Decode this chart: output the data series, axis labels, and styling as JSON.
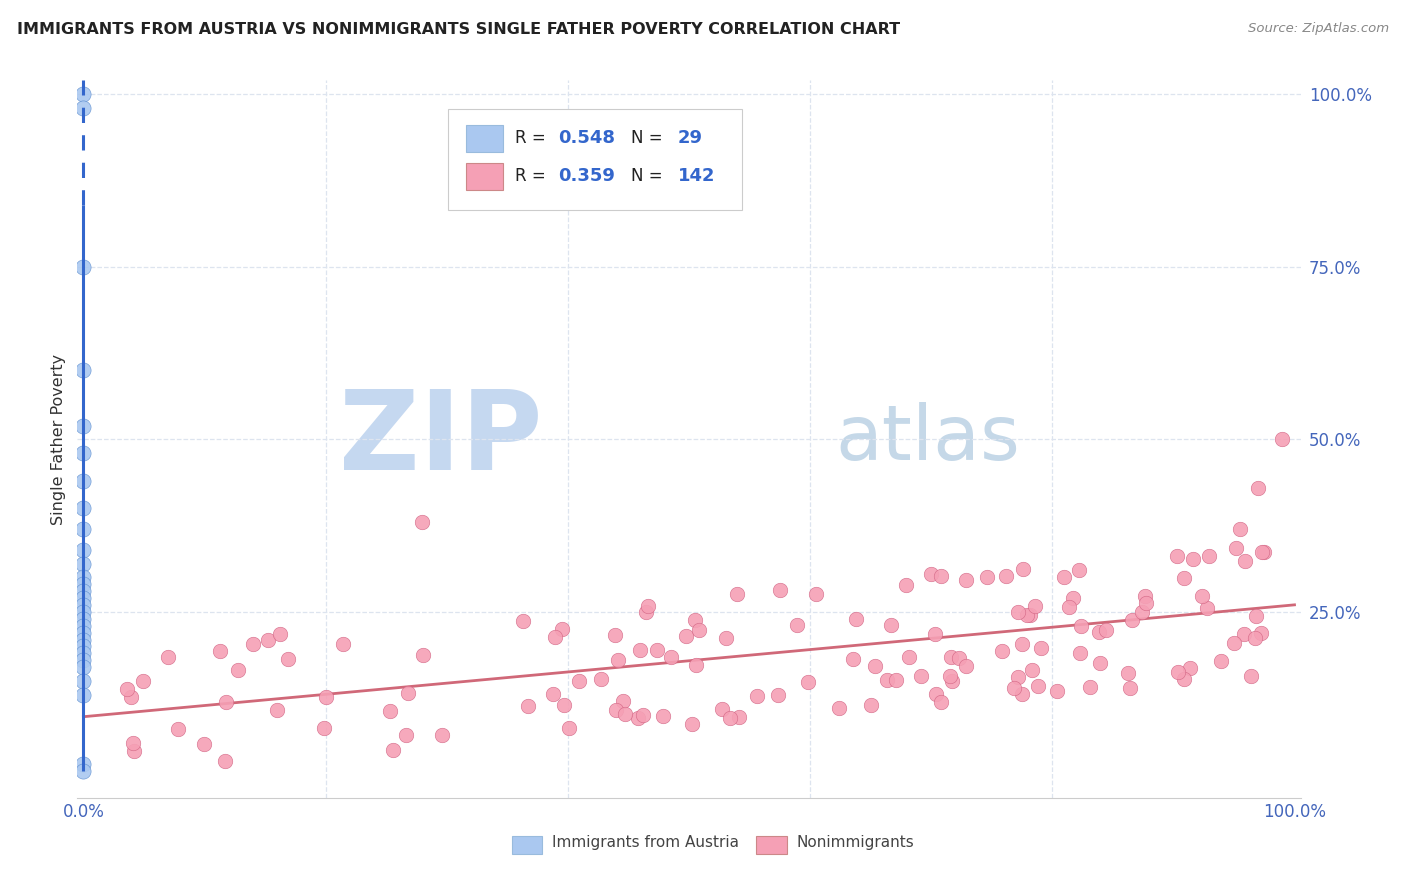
{
  "title": "IMMIGRANTS FROM AUSTRIA VS NONIMMIGRANTS SINGLE FATHER POVERTY CORRELATION CHART",
  "source": "Source: ZipAtlas.com",
  "ylabel": "Single Father Poverty",
  "legend_label1": "Immigrants from Austria",
  "legend_label2": "Nonimmigrants",
  "color_blue": "#aac8f0",
  "color_blue_border": "#5588cc",
  "color_blue_line": "#3366cc",
  "color_pink": "#f5a0b5",
  "color_pink_border": "#d06080",
  "color_pink_line": "#d06878",
  "watermark_zip": "ZIP",
  "watermark_atlas": "atlas",
  "watermark_color_zip": "#c5d8f0",
  "watermark_color_atlas": "#c5d8e8",
  "background_color": "#ffffff",
  "grid_color": "#dde4ef",
  "title_color": "#222222",
  "source_color": "#888888",
  "tick_color": "#4466bb",
  "spine_color": "#cccccc"
}
